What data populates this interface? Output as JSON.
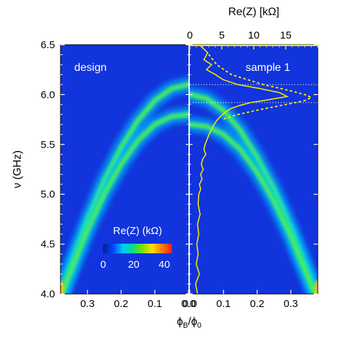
{
  "chart_data": {
    "type": "heatmap",
    "panels": [
      {
        "label": "design",
        "x_reversed": true,
        "x_ticks": [
          0.3,
          0.2,
          0.1,
          0.0
        ],
        "x_tick_labels": [
          "0.3",
          "0.2",
          "0.1",
          "0.0"
        ],
        "xlim": [
          0.38,
          0.0
        ],
        "band_upper_ridge": {
          "x": [
            0.0,
            0.05,
            0.1,
            0.15,
            0.2,
            0.25,
            0.3,
            0.35,
            0.38
          ],
          "y": [
            6.1,
            6.06,
            5.94,
            5.74,
            5.47,
            5.14,
            4.74,
            4.28,
            3.98
          ]
        },
        "band_lower_ridge": {
          "x": [
            0.0,
            0.05,
            0.1,
            0.15,
            0.2,
            0.25,
            0.3,
            0.35,
            0.38
          ],
          "y": [
            5.8,
            5.78,
            5.7,
            5.54,
            5.3,
            5.0,
            4.64,
            4.22,
            3.96
          ]
        }
      },
      {
        "label": "sample 1",
        "x_reversed": false,
        "x_ticks": [
          0.0,
          0.1,
          0.2,
          0.3
        ],
        "x_tick_labels": [
          "0.0",
          "0.1",
          "0.2",
          "0.3"
        ],
        "xlim": [
          0.0,
          0.38
        ],
        "band_upper_ridge": {
          "x": [
            0.0,
            0.05,
            0.1,
            0.15,
            0.2,
            0.25,
            0.3,
            0.35,
            0.38
          ],
          "y": [
            6.0,
            5.96,
            5.84,
            5.64,
            5.37,
            5.05,
            4.66,
            4.22,
            3.96
          ]
        },
        "band_lower_ridge": {
          "x": [
            0.0,
            0.05,
            0.1,
            0.15,
            0.2,
            0.25,
            0.3,
            0.35,
            0.38
          ],
          "y": [
            5.7,
            5.68,
            5.6,
            5.45,
            5.22,
            4.93,
            4.58,
            4.17,
            3.93
          ]
        },
        "re_z_trace": {
          "color": "#ffe600",
          "y": [
            6.5,
            6.42,
            6.35,
            6.3,
            6.25,
            6.2,
            6.15,
            6.1,
            6.06,
            6.02,
            5.98,
            5.95,
            5.92,
            5.89,
            5.86,
            5.82,
            5.78,
            5.74,
            5.7,
            5.65,
            5.6,
            5.55,
            5.5,
            5.45,
            5.4,
            5.35,
            5.3,
            5.25,
            5.2,
            5.15,
            5.1,
            5.05,
            5.0,
            4.9,
            4.8,
            4.7,
            4.6,
            4.5,
            4.4,
            4.3,
            4.2,
            4.1,
            4.0
          ],
          "re_z_kohm": [
            1.5,
            2.8,
            2.2,
            3.4,
            2.6,
            4.0,
            5.2,
            7.5,
            11.0,
            14.0,
            15.2,
            12.5,
            9.5,
            7.8,
            6.4,
            5.5,
            4.8,
            4.2,
            3.8,
            3.4,
            3.0,
            2.7,
            2.4,
            2.2,
            2.5,
            2.0,
            1.8,
            2.1,
            1.7,
            1.9,
            1.5,
            1.7,
            1.4,
            1.3,
            1.6,
            1.2,
            1.4,
            1.1,
            1.3,
            1.0,
            1.5,
            0.9,
            1.2
          ]
        },
        "dotted_fit": {
          "color": "#ffe600",
          "y": [
            6.4,
            6.3,
            6.2,
            6.1,
            6.05,
            6.0,
            5.97,
            5.94,
            5.9,
            5.85,
            5.8,
            5.75
          ],
          "re_z_kohm": [
            3.0,
            4.2,
            6.5,
            11.5,
            15.0,
            18.0,
            19.0,
            18.0,
            15.0,
            11.0,
            7.5,
            5.0
          ]
        },
        "reference_lines_ghz": [
          6.1,
          5.92
        ]
      }
    ],
    "y_axis": {
      "label": "ν (GHz)",
      "ylim": [
        4.0,
        6.5
      ],
      "ticks": [
        4.0,
        4.5,
        5.0,
        5.5,
        6.0,
        6.5
      ],
      "tick_labels": [
        "4.0",
        "4.5",
        "5.0",
        "5.5",
        "6.0",
        "6.5"
      ]
    },
    "top_axis": {
      "label": "Re(Z) [kΩ]",
      "range_kohm": [
        0,
        20
      ],
      "ticks": [
        0,
        5,
        10,
        15
      ],
      "tick_labels": [
        "0",
        "5",
        "10",
        "15"
      ]
    },
    "x_axis": {
      "label_main": "ϕ",
      "label_sub1": "B",
      "label_slash": "/ϕ",
      "label_sub2": "0"
    },
    "colorbar": {
      "title": "Re(Z) (kΩ)",
      "range": [
        0,
        45
      ],
      "ticks": [
        0,
        20,
        40
      ],
      "tick_labels": [
        "0",
        "20",
        "40"
      ],
      "colors": [
        "#0a1e8c",
        "#0044ff",
        "#00c8ff",
        "#00e08a",
        "#7ee000",
        "#ffe000",
        "#ff7a00",
        "#ff1a1a"
      ]
    },
    "background_color": "#0d2bd6",
    "grid": false
  }
}
